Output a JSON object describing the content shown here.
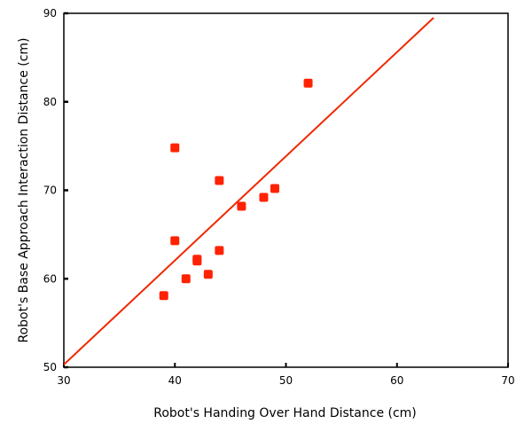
{
  "chart_data": {
    "type": "scatter",
    "xlabel": "Robot's Handing Over Hand Distance (cm)",
    "ylabel": "Robot's Base Approach Interaction Distance (cm)",
    "xlim": [
      30,
      70
    ],
    "ylim": [
      50,
      90
    ],
    "xticks": [
      "30",
      "40",
      "50",
      "60",
      "70"
    ],
    "yticks": [
      "50",
      "60",
      "70",
      "80",
      "90"
    ],
    "grid": false,
    "points": [
      {
        "x": 39,
        "y": 58.1
      },
      {
        "x": 40,
        "y": 64.3
      },
      {
        "x": 40,
        "y": 74.8
      },
      {
        "x": 41,
        "y": 60.0
      },
      {
        "x": 42,
        "y": 62.0
      },
      {
        "x": 42,
        "y": 62.2
      },
      {
        "x": 43,
        "y": 60.5
      },
      {
        "x": 44,
        "y": 63.2
      },
      {
        "x": 44,
        "y": 71.1
      },
      {
        "x": 46,
        "y": 68.2
      },
      {
        "x": 48,
        "y": 69.2
      },
      {
        "x": 49,
        "y": 70.2
      },
      {
        "x": 52,
        "y": 82.1
      }
    ],
    "fit_line": {
      "x": [
        30,
        63.3
      ],
      "y": [
        50.3,
        89.5
      ]
    },
    "colors": {
      "points": "#ff2200",
      "line": "#f02800",
      "axes": "#000000"
    }
  }
}
